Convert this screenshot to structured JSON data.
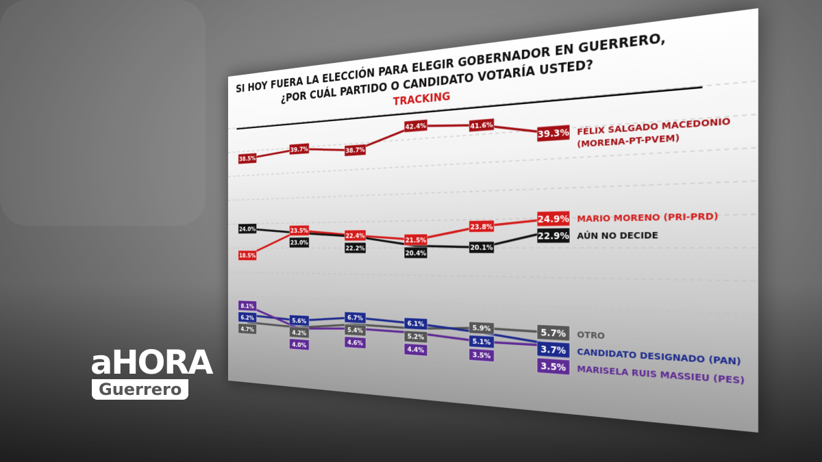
{
  "logo": {
    "main": "aHORA",
    "sub": "Guerrero"
  },
  "chart_data": {
    "type": "line",
    "title": "SI HOY FUERA LA ELECCIÓN PARA ELEGIR GOBERNADOR EN GUERRERO,",
    "subtitle": "¿POR CUÁL PARTIDO O CANDIDATO VOTARÍA USTED?",
    "tag": "TRACKING",
    "x": [
      1,
      2,
      3,
      4,
      5,
      6
    ],
    "ylim": [
      0,
      45
    ],
    "series": [
      {
        "name": "FÉLIX SALGADO MACEDONIO",
        "name2": "(MORENA-PT-PVEM)",
        "color": "#a30f14",
        "values": [
          38.5,
          39.7,
          38.7,
          42.4,
          41.6,
          39.3
        ]
      },
      {
        "name": "MARIO MORENO (PRI-PRD)",
        "color": "#d51a1a",
        "values": [
          18.5,
          23.5,
          22.4,
          21.5,
          23.8,
          24.9
        ]
      },
      {
        "name": "AÚN NO DECIDE",
        "color": "#111111",
        "values": [
          24.0,
          23.0,
          22.2,
          20.4,
          20.1,
          22.9
        ]
      },
      {
        "name": "OTRO",
        "color": "#555555",
        "values": [
          4.7,
          4.2,
          5.4,
          5.2,
          5.9,
          5.7
        ]
      },
      {
        "name": "CANDIDATO DESIGNADO (PAN)",
        "color": "#1c2a8c",
        "values": [
          6.2,
          5.6,
          6.7,
          6.1,
          5.1,
          3.7
        ]
      },
      {
        "name": "MARISELA RUIS MASSIEU (PES)",
        "color": "#5e2a94",
        "values": [
          8.1,
          4.0,
          4.6,
          4.4,
          3.5,
          3.5
        ]
      }
    ]
  }
}
